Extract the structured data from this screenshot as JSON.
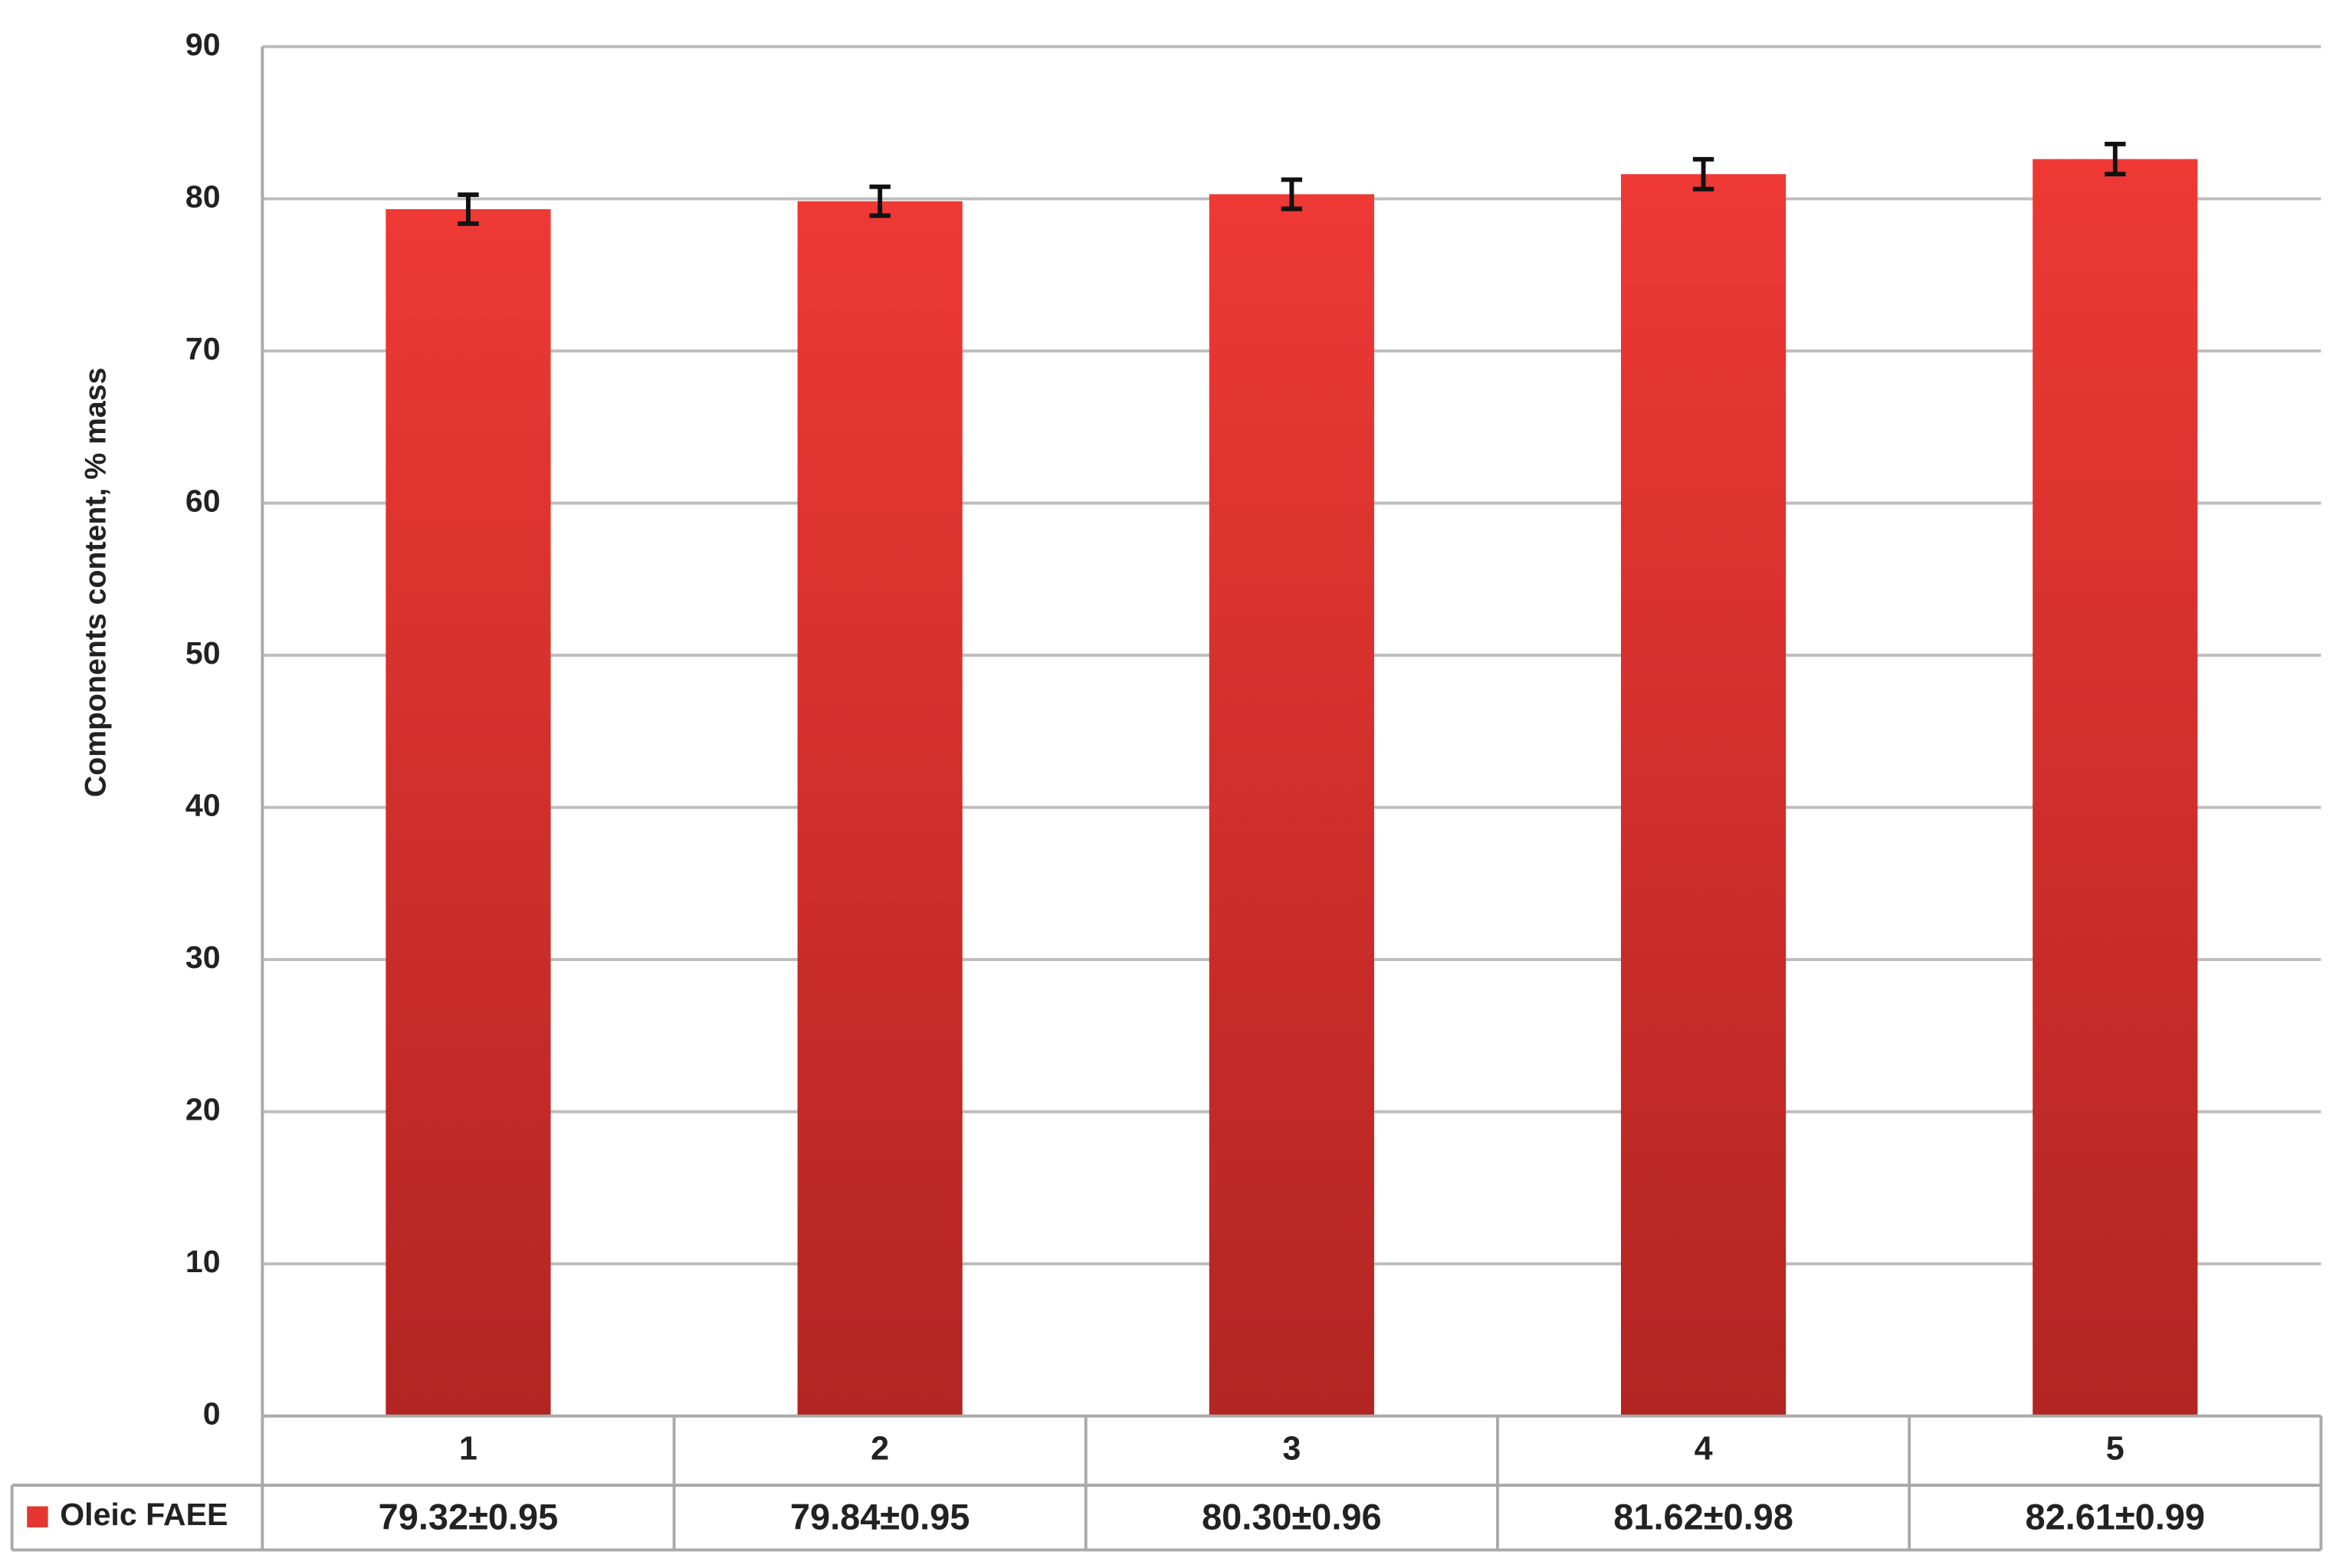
{
  "chart_data": {
    "type": "bar",
    "y_label": "Components content, % mass",
    "categories": [
      "1",
      "2",
      "3",
      "4",
      "5"
    ],
    "series": [
      {
        "name": "Oleic FAEE",
        "color": "#e53632",
        "values": [
          79.32,
          79.84,
          80.3,
          81.62,
          82.61
        ],
        "errors": [
          0.95,
          0.95,
          0.96,
          0.98,
          0.99
        ],
        "value_labels": [
          "79.32±0.95",
          "79.84±0.95",
          "80.30±0.96",
          "81.62±0.98",
          "82.61±0.99"
        ]
      }
    ],
    "ylim": [
      0,
      90
    ],
    "yticks": [
      0,
      10,
      20,
      30,
      40,
      50,
      60,
      70,
      80,
      90
    ],
    "grid": true,
    "data_table": true
  }
}
